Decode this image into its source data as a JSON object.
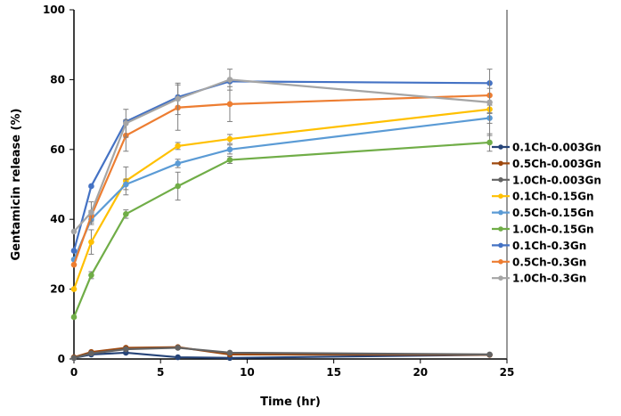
{
  "chart_data": {
    "type": "line",
    "xlabel": "Time (hr)",
    "ylabel": "Gentamicin release (%)",
    "xlim": [
      0,
      25
    ],
    "ylim": [
      0,
      100
    ],
    "xticks": [
      0,
      5,
      10,
      15,
      20,
      25
    ],
    "yticks": [
      0,
      20,
      40,
      60,
      80,
      100
    ],
    "grid": false,
    "legend": "right",
    "x": [
      0,
      1,
      3,
      6,
      9,
      24
    ],
    "series": [
      {
        "name": "0.1Ch-0.003Gn",
        "color": "#264478",
        "values": [
          0.3,
          1.3,
          1.8,
          0.5,
          0.3,
          1.2
        ],
        "errors": [
          0,
          0,
          0,
          0,
          0,
          0
        ]
      },
      {
        "name": "0.5Ch-0.003Gn",
        "color": "#9E480E",
        "values": [
          0.5,
          2.0,
          3.2,
          3.4,
          1.3,
          1.2
        ],
        "errors": [
          0,
          0,
          0,
          0,
          0,
          0
        ]
      },
      {
        "name": "1.0Ch-0.003Gn",
        "color": "#636363",
        "values": [
          0.3,
          1.6,
          2.8,
          3.2,
          1.8,
          1.3
        ],
        "errors": [
          0,
          0,
          0,
          0,
          0,
          0
        ]
      },
      {
        "name": "0.1Ch-0.15Gn",
        "color": "#FFC000",
        "values": [
          20,
          33.5,
          51,
          61,
          63,
          71.5
        ],
        "errors": [
          0,
          3.5,
          4,
          1,
          1.3,
          1.2
        ]
      },
      {
        "name": "0.5Ch-0.15Gn",
        "color": "#5B9BD5",
        "values": [
          28.5,
          40,
          50,
          56,
          60,
          69
        ],
        "errors": [
          0,
          1.5,
          1.5,
          1.2,
          1.3,
          1.5
        ]
      },
      {
        "name": "1.0Ch-0.15Gn",
        "color": "#70AD47",
        "values": [
          12,
          24,
          41.5,
          49.5,
          57,
          62
        ],
        "errors": [
          0,
          1,
          1.2,
          4,
          1,
          2.5
        ]
      },
      {
        "name": "0.1Ch-0.3Gn",
        "color": "#4472C4",
        "values": [
          31,
          49.5,
          68,
          75,
          79.5,
          79
        ],
        "errors": [
          0,
          0,
          0,
          0,
          0,
          0
        ]
      },
      {
        "name": "0.5Ch-0.3Gn",
        "color": "#ED7D31",
        "values": [
          27,
          41,
          64,
          72,
          73,
          75.5
        ],
        "errors": [
          0,
          1.5,
          4.5,
          6.5,
          5,
          2
        ]
      },
      {
        "name": "1.0Ch-0.3Gn",
        "color": "#A5A5A5",
        "values": [
          36.5,
          42,
          67.5,
          74.5,
          80,
          73.5
        ],
        "errors": [
          0,
          3,
          4,
          4.5,
          3,
          9.5
        ]
      }
    ]
  }
}
